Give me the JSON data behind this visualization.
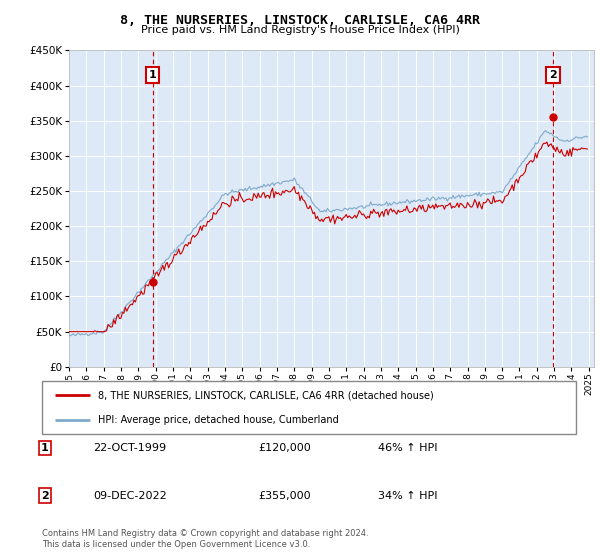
{
  "title": "8, THE NURSERIES, LINSTOCK, CARLISLE, CA6 4RR",
  "subtitle": "Price paid vs. HM Land Registry's House Price Index (HPI)",
  "ylim": [
    0,
    450000
  ],
  "bg_color": "#dde9f6",
  "red_line_color": "#cc0000",
  "blue_line_color": "#7faacc",
  "vline_color": "#cc0000",
  "marker1_date": 1999.82,
  "marker1_value": 120000,
  "marker2_date": 2022.94,
  "marker2_value": 355000,
  "legend_line1": "8, THE NURSERIES, LINSTOCK, CARLISLE, CA6 4RR (detached house)",
  "legend_line2": "HPI: Average price, detached house, Cumberland",
  "table_row1": [
    "1",
    "22-OCT-1999",
    "£120,000",
    "46% ↑ HPI"
  ],
  "table_row2": [
    "2",
    "09-DEC-2022",
    "£355,000",
    "34% ↑ HPI"
  ],
  "footer": "Contains HM Land Registry data © Crown copyright and database right 2024.\nThis data is licensed under the Open Government Licence v3.0."
}
